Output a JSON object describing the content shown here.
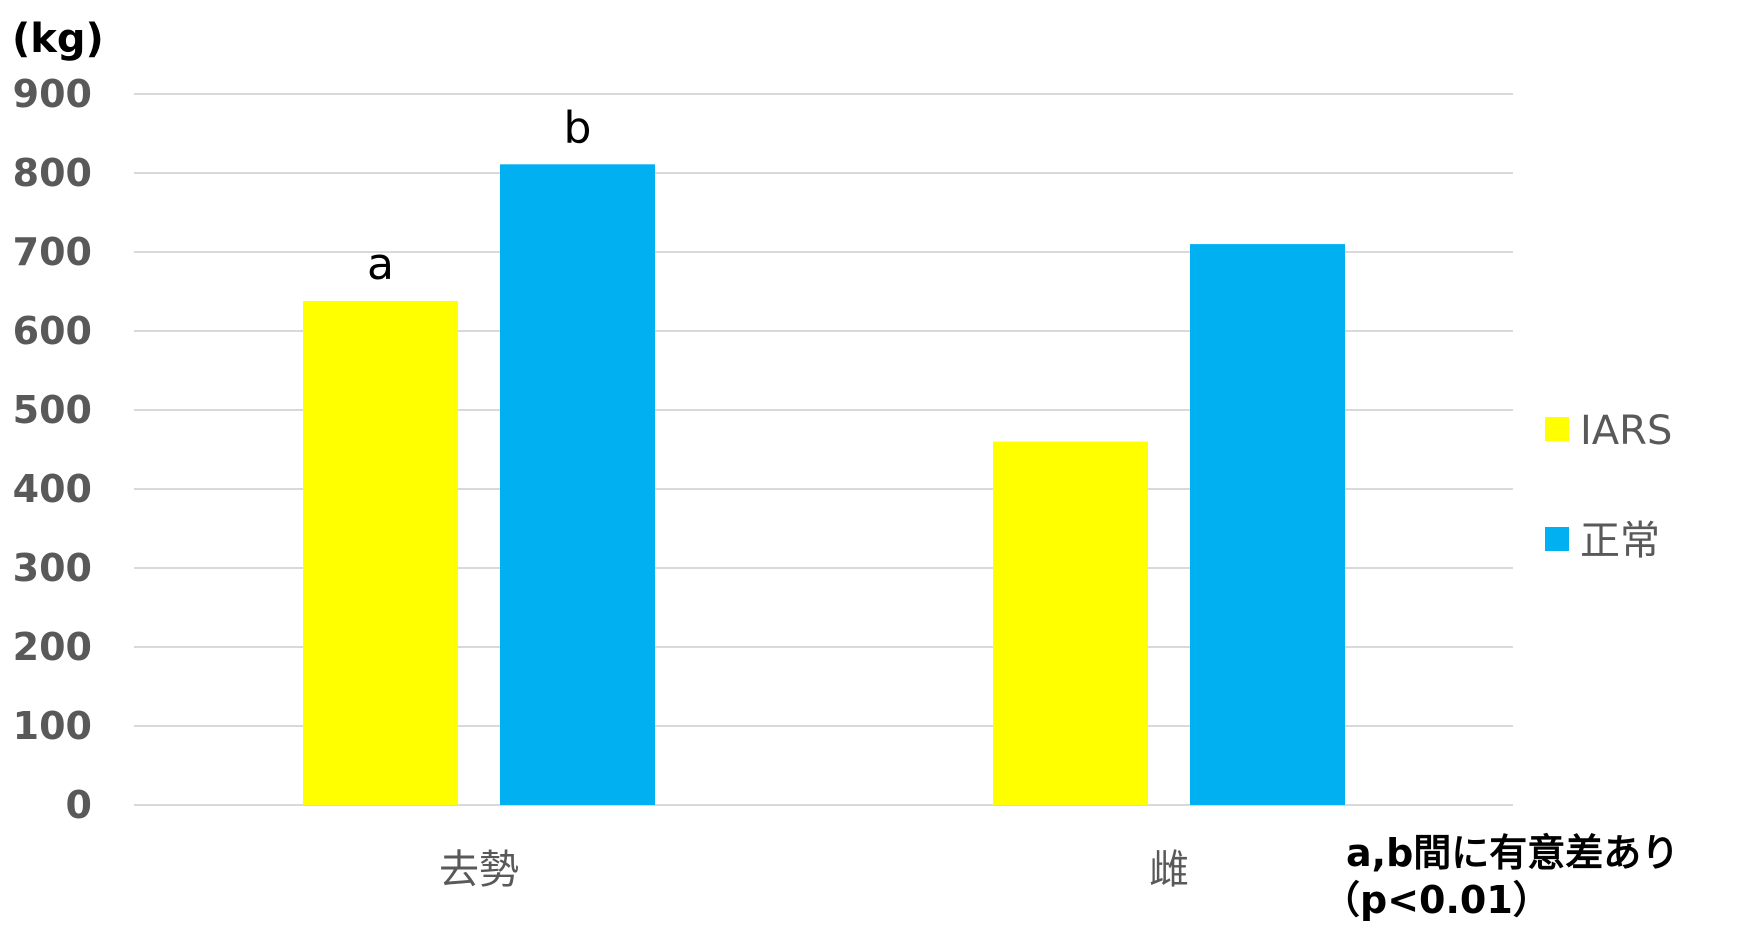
{
  "chart_data": {
    "type": "bar",
    "y_unit_label": "(kg)",
    "categories": [
      "去勢",
      "雌"
    ],
    "series": [
      {
        "name": "IARS",
        "values": [
          638,
          460
        ],
        "color": "#ffff00"
      },
      {
        "name": "正常",
        "values": [
          811,
          710
        ],
        "color": "#00b0f0"
      }
    ],
    "bar_labels": [
      {
        "series": 0,
        "category": 0,
        "text": "a"
      },
      {
        "series": 1,
        "category": 0,
        "text": "b"
      }
    ],
    "ylim": [
      0,
      900
    ],
    "yticks": [
      0,
      100,
      200,
      300,
      400,
      500,
      600,
      700,
      800,
      900
    ],
    "grid": true,
    "legend_position": "right",
    "note": [
      "a,b間に有意差あり",
      "（p<0.01）"
    ]
  }
}
